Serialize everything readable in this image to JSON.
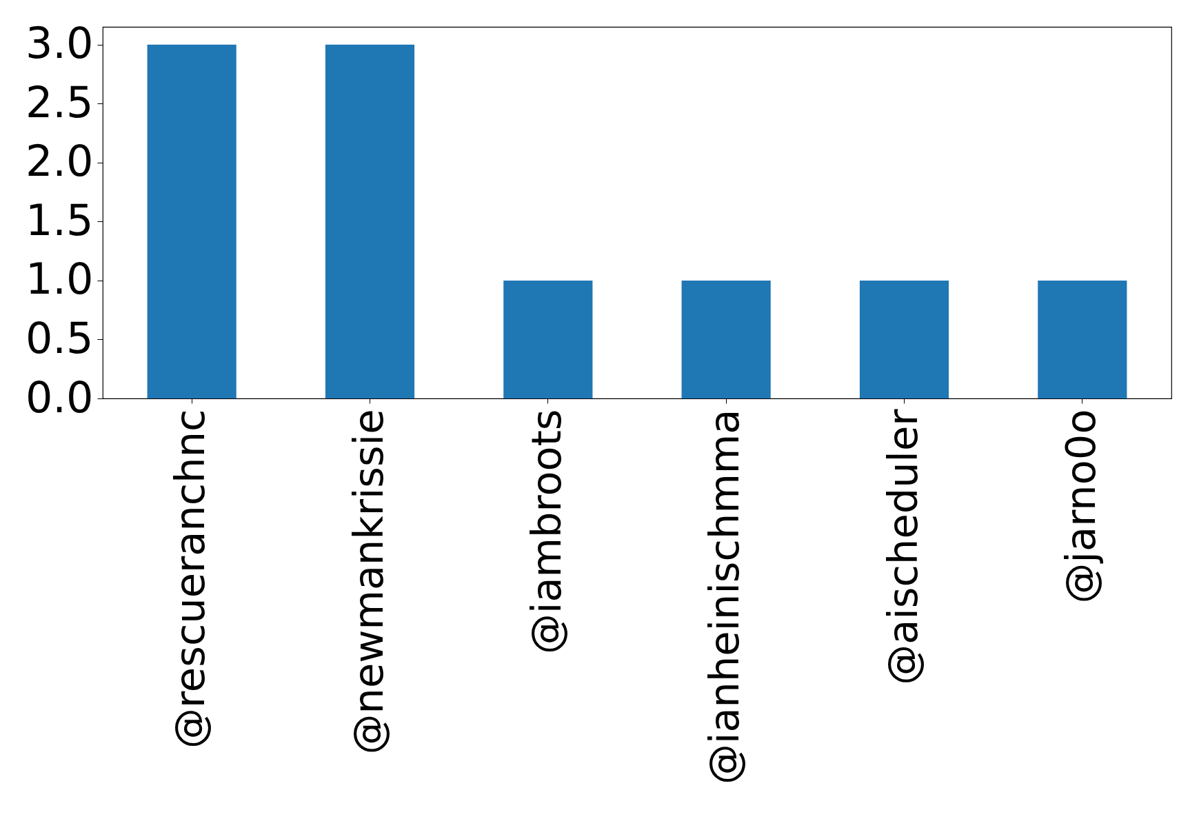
{
  "chart_data": {
    "type": "bar",
    "categories": [
      "@rescueranchnc",
      "@newmankrissie",
      "@iambroots",
      "@ianheinischmma",
      "@aischeduler",
      "@jarno0o"
    ],
    "values": [
      3,
      3,
      1,
      1,
      1,
      1
    ],
    "color": "#1f77b4",
    "ylim": [
      0,
      3.15
    ],
    "yticks": [
      {
        "value": 0,
        "label": "0.0"
      },
      {
        "value": 0.5,
        "label": "0.5"
      },
      {
        "value": 1,
        "label": "1.0"
      },
      {
        "value": 1.5,
        "label": "1.5"
      },
      {
        "value": 2,
        "label": "2.0"
      },
      {
        "value": 2.5,
        "label": "2.5"
      },
      {
        "value": 3,
        "label": "3.0"
      }
    ],
    "grid": false
  }
}
